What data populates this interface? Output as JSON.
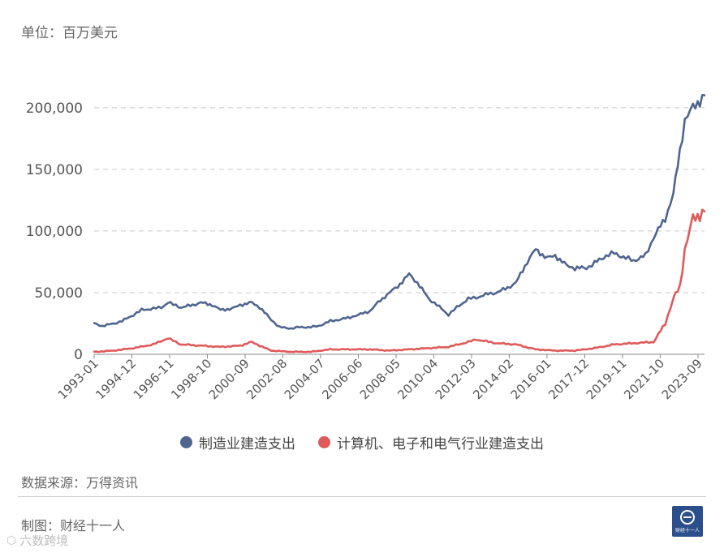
{
  "unit_label": "单位：百万美元",
  "source_label": "数据来源：万得资讯",
  "maker_label": "制图：财经十一人",
  "logo_text": "财经十一人",
  "watermark": {
    "icon": "hexagon-logo-icon",
    "text": "六数跨境"
  },
  "colors": {
    "series1": "#4f6590",
    "series2": "#e05a5a",
    "grid": "#c8c8c8"
  },
  "chart_data": {
    "type": "line",
    "title": "",
    "xlabel": "",
    "ylabel": "",
    "ylim": [
      0,
      215000
    ],
    "yticks": [
      0,
      50000,
      100000,
      150000,
      200000
    ],
    "ytick_labels": [
      "0",
      "50,000",
      "100,000",
      "150,000",
      "200,000"
    ],
    "grid": true,
    "legend_position": "bottom",
    "x_tick_labels": [
      "1993-01",
      "1994-12",
      "1996-11",
      "1998-10",
      "2000-09",
      "2002-08",
      "2004-07",
      "2006-06",
      "2008-05",
      "2010-04",
      "2012-03",
      "2014-02",
      "2016-01",
      "2017-12",
      "2019-11",
      "2021-10",
      "2023-09"
    ],
    "x_range": [
      "1993-01",
      "2024-01"
    ],
    "series": [
      {
        "name": "制造业建造支出",
        "color": "#4f6590",
        "points": [
          [
            "1993-01",
            25000
          ],
          [
            "1993-06",
            23000
          ],
          [
            "1994-01",
            25000
          ],
          [
            "1994-06",
            27000
          ],
          [
            "1995-01",
            32000
          ],
          [
            "1995-06",
            36000
          ],
          [
            "1996-01",
            37000
          ],
          [
            "1996-06",
            38000
          ],
          [
            "1996-10",
            42000
          ],
          [
            "1997-06",
            38000
          ],
          [
            "1998-01",
            40000
          ],
          [
            "1998-06",
            42000
          ],
          [
            "1999-01",
            40000
          ],
          [
            "1999-06",
            36000
          ],
          [
            "2000-01",
            37000
          ],
          [
            "2000-06",
            40000
          ],
          [
            "2001-01",
            42000
          ],
          [
            "2001-06",
            38000
          ],
          [
            "2002-01",
            28000
          ],
          [
            "2002-06",
            22000
          ],
          [
            "2003-01",
            21000
          ],
          [
            "2003-06",
            22000
          ],
          [
            "2004-01",
            22000
          ],
          [
            "2004-06",
            23000
          ],
          [
            "2005-01",
            27000
          ],
          [
            "2005-06",
            28000
          ],
          [
            "2006-01",
            30000
          ],
          [
            "2006-06",
            32000
          ],
          [
            "2007-01",
            35000
          ],
          [
            "2007-06",
            42000
          ],
          [
            "2008-01",
            50000
          ],
          [
            "2008-06",
            55000
          ],
          [
            "2009-01",
            65000
          ],
          [
            "2009-06",
            58000
          ],
          [
            "2010-01",
            45000
          ],
          [
            "2010-06",
            40000
          ],
          [
            "2011-01",
            32000
          ],
          [
            "2011-06",
            38000
          ],
          [
            "2012-01",
            45000
          ],
          [
            "2012-06",
            46000
          ],
          [
            "2013-01",
            49000
          ],
          [
            "2013-06",
            50000
          ],
          [
            "2014-01",
            54000
          ],
          [
            "2014-06",
            58000
          ],
          [
            "2015-01",
            75000
          ],
          [
            "2015-06",
            85000
          ],
          [
            "2016-01",
            78000
          ],
          [
            "2016-06",
            80000
          ],
          [
            "2017-01",
            72000
          ],
          [
            "2017-06",
            70000
          ],
          [
            "2018-01",
            70000
          ],
          [
            "2018-06",
            74000
          ],
          [
            "2019-01",
            80000
          ],
          [
            "2019-06",
            82000
          ],
          [
            "2020-01",
            78000
          ],
          [
            "2020-06",
            76000
          ],
          [
            "2021-01",
            80000
          ],
          [
            "2021-06",
            95000
          ],
          [
            "2022-01",
            110000
          ],
          [
            "2022-06",
            130000
          ],
          [
            "2022-10",
            165000
          ],
          [
            "2023-01",
            190000
          ],
          [
            "2023-06",
            200000
          ],
          [
            "2024-01",
            210000
          ]
        ]
      },
      {
        "name": "计算机、电子和电气行业建造支出",
        "color": "#e05a5a",
        "points": [
          [
            "1993-01",
            2000
          ],
          [
            "1994-01",
            3000
          ],
          [
            "1995-01",
            5000
          ],
          [
            "1996-01",
            8000
          ],
          [
            "1996-10",
            13000
          ],
          [
            "1997-06",
            8000
          ],
          [
            "1998-06",
            7000
          ],
          [
            "1999-06",
            6000
          ],
          [
            "2000-06",
            7000
          ],
          [
            "2001-01",
            10000
          ],
          [
            "2001-06",
            7000
          ],
          [
            "2002-01",
            3000
          ],
          [
            "2003-01",
            2000
          ],
          [
            "2004-01",
            2000
          ],
          [
            "2005-01",
            4000
          ],
          [
            "2006-01",
            4000
          ],
          [
            "2007-01",
            4000
          ],
          [
            "2008-01",
            3000
          ],
          [
            "2009-01",
            4000
          ],
          [
            "2010-01",
            5000
          ],
          [
            "2011-01",
            6000
          ],
          [
            "2012-01",
            10000
          ],
          [
            "2012-06",
            12000
          ],
          [
            "2013-06",
            9000
          ],
          [
            "2014-06",
            8000
          ],
          [
            "2015-06",
            4000
          ],
          [
            "2016-06",
            3000
          ],
          [
            "2017-06",
            3000
          ],
          [
            "2018-06",
            5000
          ],
          [
            "2019-06",
            8000
          ],
          [
            "2020-06",
            9000
          ],
          [
            "2021-06",
            10000
          ],
          [
            "2022-01",
            25000
          ],
          [
            "2022-06",
            45000
          ],
          [
            "2022-10",
            55000
          ],
          [
            "2023-01",
            85000
          ],
          [
            "2023-06",
            110000
          ],
          [
            "2024-01",
            116000
          ]
        ]
      }
    ]
  }
}
